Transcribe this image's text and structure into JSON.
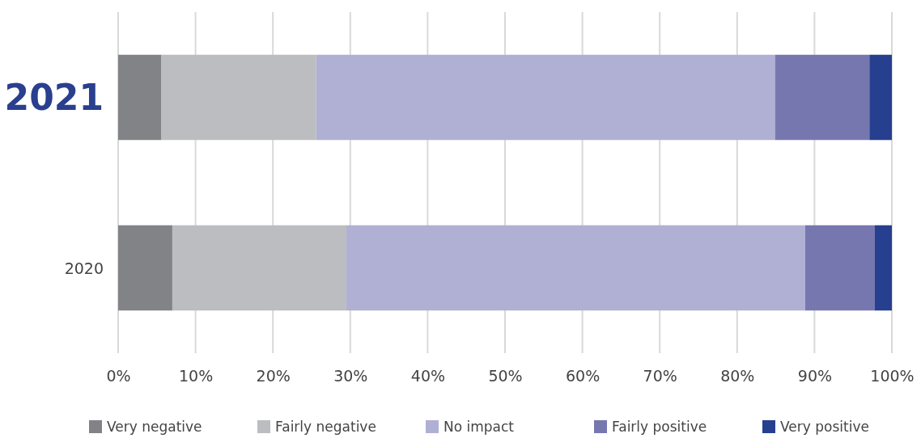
{
  "chart_data": {
    "type": "bar",
    "orientation": "horizontal",
    "stacked": true,
    "categories": [
      "2021",
      "2020"
    ],
    "series": [
      {
        "name": "Very negative",
        "color": "#828387",
        "values": [
          5.6,
          7.0
        ]
      },
      {
        "name": "Fairly negative",
        "color": "#bcbdc0",
        "values": [
          20.0,
          22.5
        ]
      },
      {
        "name": "No impact",
        "color": "#b0b0d4",
        "values": [
          59.3,
          59.3
        ]
      },
      {
        "name": "Fairly positive",
        "color": "#7777b0",
        "values": [
          12.2,
          9.0
        ]
      },
      {
        "name": "Very positive",
        "color": "#263f8f",
        "values": [
          2.9,
          2.2
        ]
      }
    ],
    "xlim": [
      0,
      100
    ],
    "xticks": [
      {
        "value": 0,
        "label": "0%"
      },
      {
        "value": 10,
        "label": "10%"
      },
      {
        "value": 20,
        "label": "20%"
      },
      {
        "value": 30,
        "label": "30%"
      },
      {
        "value": 40,
        "label": "40%"
      },
      {
        "value": 50,
        "label": "50%"
      },
      {
        "value": 60,
        "label": "60%"
      },
      {
        "value": 70,
        "label": "70%"
      },
      {
        "value": 80,
        "label": "80%"
      },
      {
        "value": 90,
        "label": "90%"
      },
      {
        "value": 100,
        "label": "100%"
      }
    ],
    "grid": "x",
    "legend": "bottom"
  }
}
